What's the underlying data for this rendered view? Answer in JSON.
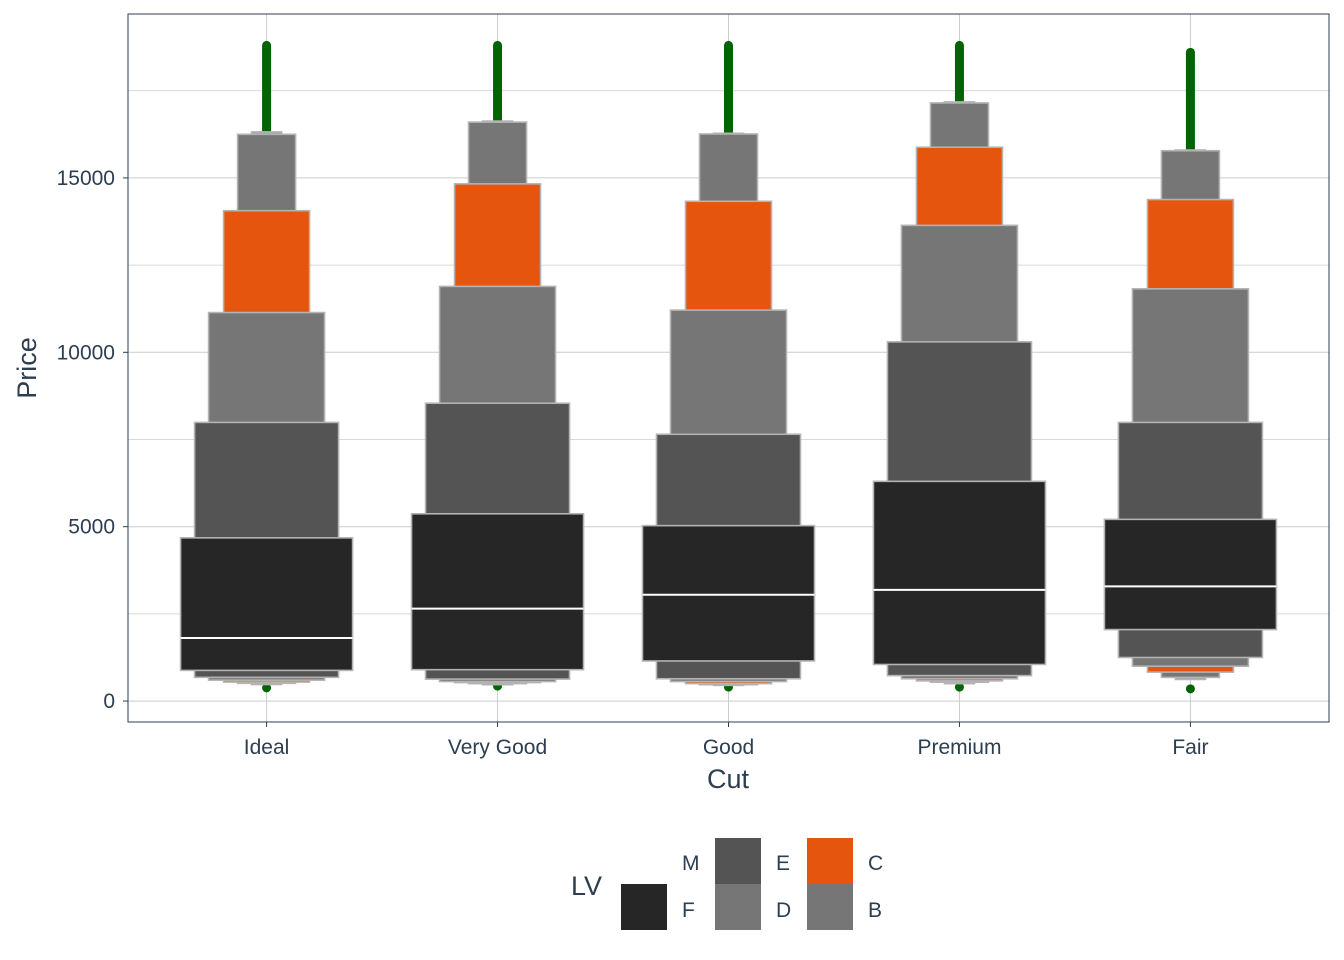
{
  "chart_data": {
    "type": "letter-value",
    "xlabel": "Cut",
    "ylabel": "Price",
    "categories": [
      "Ideal",
      "Very Good",
      "Good",
      "Premium",
      "Fair"
    ],
    "yticks": [
      0,
      5000,
      10000,
      15000
    ],
    "ylim": [
      -600,
      19700
    ],
    "grid": true,
    "legend": {
      "title": "LV",
      "position": "bottom",
      "keys": [
        {
          "label": "F",
          "color": "#262626"
        },
        {
          "label": "M",
          "color": "#262626"
        },
        {
          "label": "E",
          "color": "#545454"
        },
        {
          "label": "D",
          "color": "#767676"
        },
        {
          "label": "C",
          "color": "#e5550d"
        },
        {
          "label": "B",
          "color": "#767676"
        }
      ]
    },
    "colors": {
      "F": "#262626",
      "E": "#545454",
      "D": "#767676",
      "C": "#e5550d",
      "B": "#767676",
      "A": "#a0a0a0",
      "outlier": "#006400",
      "median": "#ffffff",
      "box_stroke": "#b3b3b3"
    },
    "series": [
      {
        "name": "Ideal",
        "median": 1810,
        "outliers": {
          "low": 380,
          "high_from": 16320,
          "high_to": 18800
        },
        "letter_values": [
          {
            "level": "F",
            "low": 880,
            "high": 4680
          },
          {
            "level": "E",
            "low": 680,
            "high": 7990
          },
          {
            "level": "D",
            "low": 600,
            "high": 11140
          },
          {
            "level": "C",
            "low": 545,
            "high": 14060
          },
          {
            "level": "B",
            "low": 510,
            "high": 16250
          },
          {
            "level": "A",
            "low": 475,
            "high": 16320
          }
        ]
      },
      {
        "name": "Very Good",
        "median": 2650,
        "outliers": {
          "low": 430,
          "high_from": 16630,
          "high_to": 18800
        },
        "letter_values": [
          {
            "level": "F",
            "low": 900,
            "high": 5370
          },
          {
            "level": "E",
            "low": 630,
            "high": 8540
          },
          {
            "level": "D",
            "low": 560,
            "high": 11890
          },
          {
            "level": "C",
            "low": 530,
            "high": 14830
          },
          {
            "level": "B",
            "low": 500,
            "high": 16600
          },
          {
            "level": "A",
            "low": 470,
            "high": 16630
          }
        ]
      },
      {
        "name": "Good",
        "median": 3050,
        "outliers": {
          "low": 400,
          "high_from": 16280,
          "high_to": 18800
        },
        "letter_values": [
          {
            "level": "F",
            "low": 1150,
            "high": 5030
          },
          {
            "level": "E",
            "low": 640,
            "high": 7650
          },
          {
            "level": "D",
            "low": 560,
            "high": 11210
          },
          {
            "level": "C",
            "low": 500,
            "high": 14330
          },
          {
            "level": "B",
            "low": 470,
            "high": 16260
          },
          {
            "level": "A",
            "low": 450,
            "high": 16280
          }
        ]
      },
      {
        "name": "Premium",
        "median": 3190,
        "outliers": {
          "low": 400,
          "high_from": 17180,
          "high_to": 18800
        },
        "letter_values": [
          {
            "level": "F",
            "low": 1050,
            "high": 6300
          },
          {
            "level": "E",
            "low": 730,
            "high": 10300
          },
          {
            "level": "D",
            "low": 640,
            "high": 13640
          },
          {
            "level": "C",
            "low": 580,
            "high": 15880
          },
          {
            "level": "B",
            "low": 540,
            "high": 17150
          },
          {
            "level": "A",
            "low": 500,
            "high": 17180
          }
        ]
      },
      {
        "name": "Fair",
        "median": 3290,
        "outliers": {
          "low": 350,
          "high_from": 15780,
          "high_to": 18600
        },
        "letter_values": [
          {
            "level": "F",
            "low": 2050,
            "high": 5210
          },
          {
            "level": "E",
            "low": 1250,
            "high": 7990
          },
          {
            "level": "D",
            "low": 1000,
            "high": 11820
          },
          {
            "level": "C",
            "low": 830,
            "high": 14380
          },
          {
            "level": "B",
            "low": 680,
            "high": 15780
          },
          {
            "level": "A",
            "low": 620,
            "high": 15800
          }
        ]
      }
    ]
  }
}
